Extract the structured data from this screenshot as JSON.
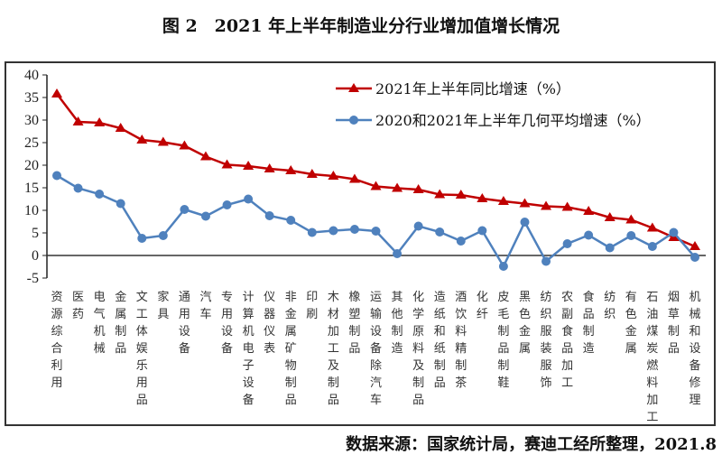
{
  "title": "图 2　2021 年上半年制造业分行业增加值增长情况",
  "source": "数据来源：国家统计局，赛迪工经所整理，2021.8",
  "chart_data": {
    "type": "line",
    "ylim": [
      -5,
      40
    ],
    "yticks": [
      -5,
      0,
      5,
      10,
      15,
      20,
      25,
      30,
      35,
      40
    ],
    "grid": false,
    "legend_position": "top-right",
    "categories": [
      "资源综合利用",
      "医药",
      "电气机械",
      "金属制品",
      "文工体娱乐用品",
      "家具",
      "通用设备",
      "汽车",
      "专用设备",
      "计算机电子设备",
      "仪器仪表",
      "非金属矿物制品",
      "印刷",
      "木材加工及制品",
      "橡塑制品",
      "运输设备除汽车",
      "其他制造",
      "化学原料及制品",
      "造纸和纸制品",
      "酒饮料精制茶",
      "化纤",
      "皮毛制品制鞋",
      "黑色金属",
      "纺织服装服饰",
      "农副食品加工",
      "食品制造",
      "纺织",
      "有色金属",
      "石油煤炭燃料加工",
      "烟草制品",
      "机械和设备修理"
    ],
    "series": [
      {
        "name": "2021年上半年同比增速（%）",
        "color": "#C00000",
        "marker": "triangle",
        "values": [
          35.8,
          29.6,
          29.4,
          28.2,
          25.6,
          25.1,
          24.3,
          21.9,
          20.1,
          19.8,
          19.2,
          18.8,
          18.0,
          17.6,
          16.9,
          15.3,
          14.9,
          14.6,
          13.5,
          13.4,
          12.6,
          12.0,
          11.5,
          10.9,
          10.7,
          9.8,
          8.4,
          7.9,
          6.1,
          4.0,
          2.0
        ]
      },
      {
        "name": "2020和2021年上半年几何平均增速（%）",
        "color": "#4F81BD",
        "marker": "circle",
        "values": [
          17.7,
          14.9,
          13.6,
          11.5,
          3.8,
          4.4,
          10.2,
          8.7,
          11.2,
          12.5,
          8.8,
          7.8,
          5.1,
          5.5,
          5.8,
          5.4,
          0.4,
          6.5,
          5.2,
          3.2,
          5.5,
          -2.4,
          7.4,
          -1.3,
          2.6,
          4.5,
          1.7,
          4.4,
          2.0,
          5.1,
          -0.4
        ]
      }
    ]
  }
}
